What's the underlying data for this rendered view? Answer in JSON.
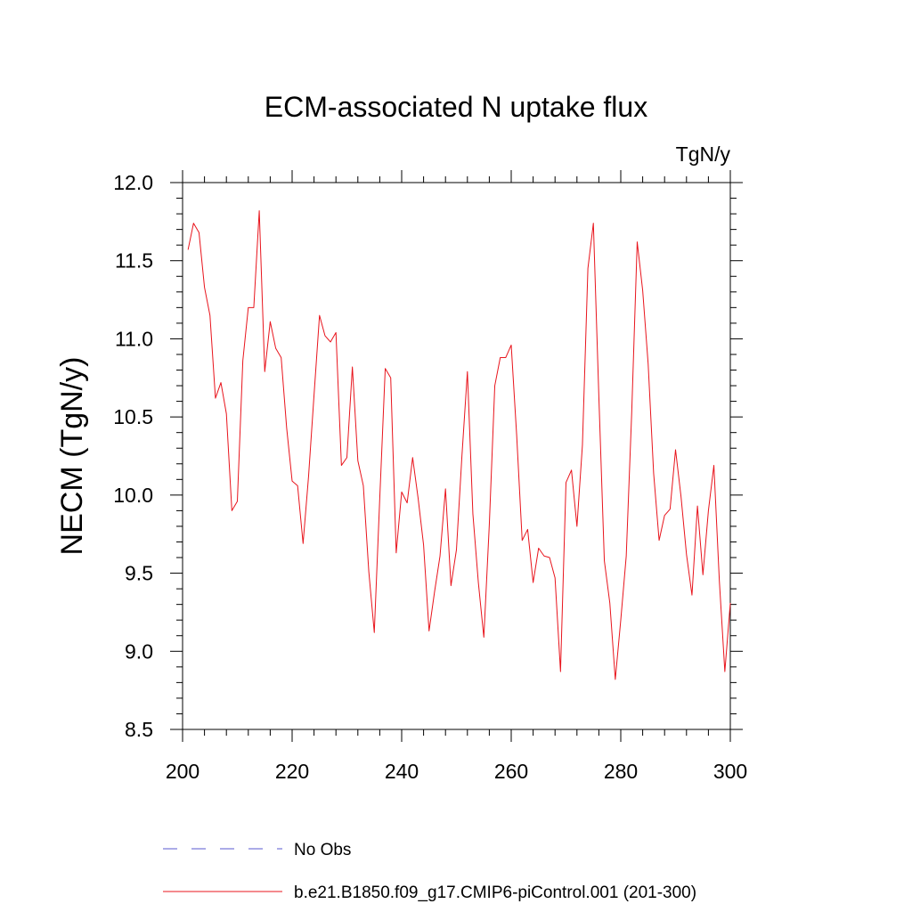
{
  "chart_data": {
    "type": "line",
    "title": "ECM-associated N uptake flux",
    "units_label": "TgN/y",
    "xlabel": "",
    "ylabel": "NECM  (TgN/y)",
    "xlim": [
      200,
      300
    ],
    "ylim": [
      8.5,
      12.0
    ],
    "x_ticks": [
      200,
      220,
      240,
      260,
      280,
      300
    ],
    "x_tick_labels": [
      "200",
      "220",
      "240",
      "260",
      "280",
      "300"
    ],
    "y_ticks": [
      8.5,
      9.0,
      9.5,
      10.0,
      10.5,
      11.0,
      11.5,
      12.0
    ],
    "y_tick_labels": [
      "8.5",
      "9.0",
      "9.5",
      "10.0",
      "10.5",
      "11.0",
      "11.5",
      "12.0"
    ],
    "x_minor_step": 4,
    "y_minor_step": 0.1,
    "grid": false,
    "legend_position": "bottom-left",
    "series": [
      {
        "name": "b.e21.B1850.f09_g17.CMIP6-piControl.001 (201-300)",
        "color": "#e8141c",
        "style": "solid",
        "x": [
          201,
          202,
          203,
          204,
          205,
          206,
          207,
          208,
          209,
          210,
          211,
          212,
          213,
          214,
          215,
          216,
          217,
          218,
          219,
          220,
          221,
          222,
          223,
          224,
          225,
          226,
          227,
          228,
          229,
          230,
          231,
          232,
          233,
          234,
          235,
          236,
          237,
          238,
          239,
          240,
          241,
          242,
          243,
          244,
          245,
          246,
          247,
          248,
          249,
          250,
          251,
          252,
          253,
          254,
          255,
          256,
          257,
          258,
          259,
          260,
          261,
          262,
          263,
          264,
          265,
          266,
          267,
          268,
          269,
          270,
          271,
          272,
          273,
          274,
          275,
          276,
          277,
          278,
          279,
          280,
          281,
          282,
          283,
          284,
          285,
          286,
          287,
          288,
          289,
          290,
          291,
          292,
          293,
          294,
          295,
          296,
          297,
          298,
          299,
          300
        ],
        "values": [
          11.57,
          11.74,
          11.68,
          11.33,
          11.15,
          10.62,
          10.72,
          10.52,
          9.9,
          9.96,
          10.86,
          11.2,
          11.2,
          11.82,
          10.79,
          11.11,
          10.94,
          10.88,
          10.43,
          10.09,
          10.06,
          9.69,
          10.12,
          10.64,
          11.15,
          11.02,
          10.98,
          11.04,
          10.19,
          10.24,
          10.82,
          10.22,
          10.06,
          9.51,
          9.12,
          9.98,
          10.81,
          10.75,
          9.63,
          10.02,
          9.95,
          10.24,
          9.98,
          9.68,
          9.13,
          9.38,
          9.61,
          10.04,
          9.42,
          9.65,
          10.25,
          10.79,
          9.88,
          9.44,
          9.09,
          9.81,
          10.7,
          10.88,
          10.88,
          10.96,
          10.38,
          9.71,
          9.78,
          9.44,
          9.66,
          9.61,
          9.6,
          9.47,
          8.87,
          10.08,
          10.16,
          9.8,
          10.32,
          11.45,
          11.74,
          10.63,
          9.58,
          9.31,
          8.82,
          9.2,
          9.61,
          10.53,
          11.62,
          11.31,
          10.84,
          10.14,
          9.71,
          9.87,
          9.91,
          10.29,
          9.99,
          9.62,
          9.36,
          9.93,
          9.49,
          9.9,
          10.19,
          9.45,
          8.87,
          9.31
        ]
      },
      {
        "name": "No Obs",
        "color": "#5a5ad2",
        "style": "dashed",
        "x": [],
        "values": []
      }
    ]
  }
}
